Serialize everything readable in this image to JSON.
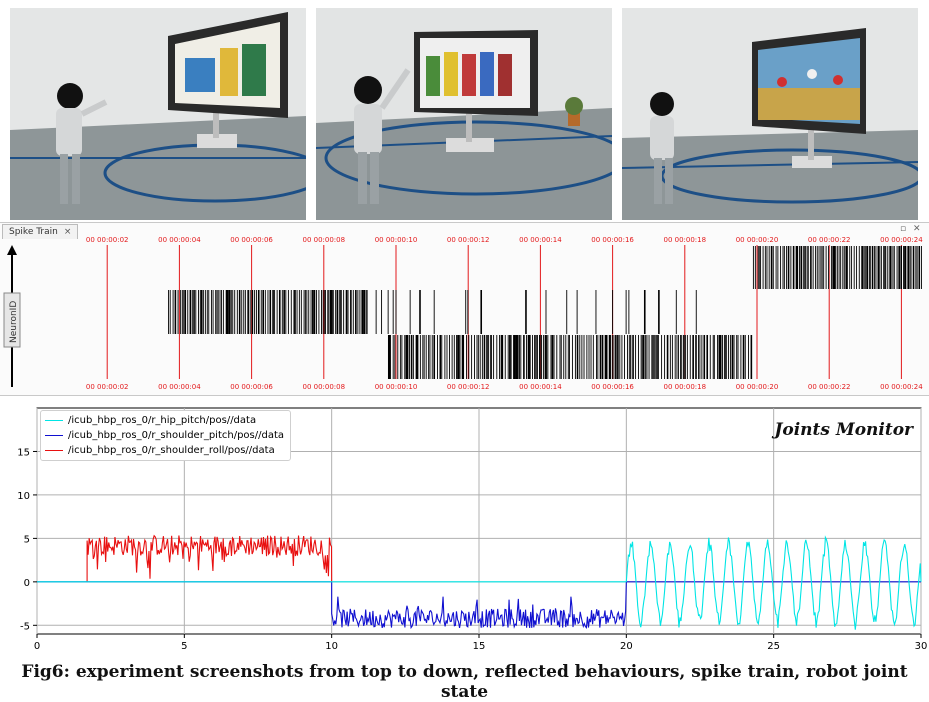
{
  "scenes": [
    {
      "name": "scene-1"
    },
    {
      "name": "scene-2"
    },
    {
      "name": "scene-3"
    }
  ],
  "spike_train": {
    "tab_label": "Spike Train",
    "tab_close": "×",
    "y_label": "NeuronID",
    "time_labels": [
      "00 00:00:02",
      "00 00:00:04",
      "00 00:00:06",
      "00 00:00:08",
      "00 00:00:10",
      "00 00:00:12",
      "00 00:00:14",
      "00 00:00:16",
      "00 00:00:18",
      "00 00:00:20",
      "00 00:00:22",
      "00 00:00:24"
    ],
    "marker_color": "#e31a1c"
  },
  "joints_monitor": {
    "title": "Joints Monitor"
  },
  "chart_data": {
    "type": "line",
    "xlim": [
      0,
      30
    ],
    "ylim": [
      -6,
      20
    ],
    "x_ticks": [
      0,
      5,
      10,
      15,
      20,
      25,
      30
    ],
    "y_ticks": [
      -5,
      0,
      5,
      10,
      15
    ],
    "grid": true,
    "legend_position": "top-left",
    "series": [
      {
        "name": "/icub_hbp_ros_0/r_hip_pitch/pos//data",
        "color": "#00e5e5",
        "segments": [
          {
            "x_range": [
              0,
              20
            ],
            "level": 0
          },
          {
            "x_range": [
              20,
              30
            ],
            "oscillation_min": -5.5,
            "oscillation_max": 5.3
          }
        ]
      },
      {
        "name": "/icub_hbp_ros_0/r_shoulder_pitch/pos//data",
        "color": "#1010d0",
        "segments": [
          {
            "x_range": [
              0,
              10
            ],
            "level": 0
          },
          {
            "x_range": [
              10,
              20
            ],
            "oscillation_min": -5.6,
            "oscillation_max": -1.7
          },
          {
            "x_range": [
              20,
              30
            ],
            "level": 0
          }
        ]
      },
      {
        "name": "/icub_hbp_ros_0/r_shoulder_roll/pos//data",
        "color": "#e81010",
        "segments": [
          {
            "x_range": [
              1.7,
              10
            ],
            "oscillation_min": 0,
            "oscillation_max": 5.7
          }
        ]
      }
    ]
  },
  "caption": "Fig6: experiment screenshots from top to down, reflected behaviours, spike train, robot joint state"
}
